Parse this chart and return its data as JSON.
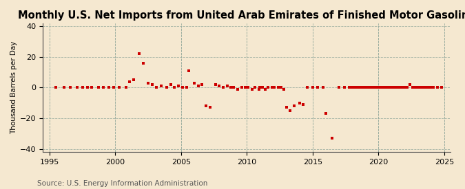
{
  "title": "Monthly U.S. Net Imports from United Arab Emirates of Finished Motor Gasoline",
  "ylabel": "Thousand Barrels per Day",
  "source": "Source: U.S. Energy Information Administration",
  "background_color": "#f5e8d0",
  "plot_bg_color": "#f5e8d0",
  "marker_color": "#cc0000",
  "marker": "s",
  "marker_size": 3.5,
  "xlim": [
    1994.5,
    2025.5
  ],
  "ylim": [
    -42,
    42
  ],
  "yticks": [
    -40,
    -20,
    0,
    20,
    40
  ],
  "xticks": [
    1995,
    2000,
    2005,
    2010,
    2015,
    2020,
    2025
  ],
  "title_fontsize": 10.5,
  "source_fontsize": 7.5,
  "data_points": [
    [
      1995.5,
      0
    ],
    [
      1996.1,
      0
    ],
    [
      1996.6,
      0
    ],
    [
      1997.1,
      0
    ],
    [
      1997.5,
      0
    ],
    [
      1997.9,
      0
    ],
    [
      1998.2,
      0
    ],
    [
      1998.7,
      0
    ],
    [
      1999.1,
      0
    ],
    [
      1999.5,
      0
    ],
    [
      1999.9,
      0
    ],
    [
      2000.3,
      0
    ],
    [
      2000.8,
      0
    ],
    [
      2001.1,
      4
    ],
    [
      2001.4,
      5
    ],
    [
      2001.8,
      22
    ],
    [
      2002.1,
      16
    ],
    [
      2002.5,
      3
    ],
    [
      2002.8,
      2
    ],
    [
      2003.1,
      0
    ],
    [
      2003.5,
      1
    ],
    [
      2003.9,
      0
    ],
    [
      2004.2,
      2
    ],
    [
      2004.5,
      0
    ],
    [
      2004.8,
      1
    ],
    [
      2005.1,
      0
    ],
    [
      2005.4,
      0
    ],
    [
      2005.6,
      11
    ],
    [
      2006.0,
      3
    ],
    [
      2006.3,
      1
    ],
    [
      2006.6,
      2
    ],
    [
      2006.9,
      -12
    ],
    [
      2007.2,
      -13
    ],
    [
      2007.6,
      2
    ],
    [
      2007.9,
      1
    ],
    [
      2008.2,
      0
    ],
    [
      2008.5,
      1
    ],
    [
      2008.8,
      0
    ],
    [
      2009.0,
      0
    ],
    [
      2009.3,
      -1
    ],
    [
      2009.6,
      0
    ],
    [
      2009.9,
      0
    ],
    [
      2010.1,
      0
    ],
    [
      2010.4,
      -1
    ],
    [
      2010.6,
      0
    ],
    [
      2010.9,
      -1
    ],
    [
      2011.0,
      0
    ],
    [
      2011.2,
      0
    ],
    [
      2011.4,
      -1
    ],
    [
      2011.6,
      0
    ],
    [
      2011.9,
      0
    ],
    [
      2012.1,
      0
    ],
    [
      2012.4,
      0
    ],
    [
      2012.6,
      0
    ],
    [
      2012.8,
      -1
    ],
    [
      2013.0,
      -13
    ],
    [
      2013.3,
      -15
    ],
    [
      2013.6,
      -12
    ],
    [
      2014.0,
      -10
    ],
    [
      2014.3,
      -11
    ],
    [
      2014.6,
      0
    ],
    [
      2015.0,
      0
    ],
    [
      2015.4,
      0
    ],
    [
      2015.8,
      0
    ],
    [
      2016.0,
      -17
    ],
    [
      2016.5,
      -33
    ],
    [
      2017.0,
      0
    ],
    [
      2017.4,
      0
    ],
    [
      2017.8,
      0
    ],
    [
      2018.0,
      0
    ],
    [
      2018.2,
      0
    ],
    [
      2018.4,
      0
    ],
    [
      2018.6,
      0
    ],
    [
      2018.8,
      0
    ],
    [
      2019.0,
      0
    ],
    [
      2019.2,
      0
    ],
    [
      2019.4,
      0
    ],
    [
      2019.6,
      0
    ],
    [
      2019.8,
      0
    ],
    [
      2020.0,
      0
    ],
    [
      2020.2,
      0
    ],
    [
      2020.4,
      0
    ],
    [
      2020.6,
      0
    ],
    [
      2020.8,
      0
    ],
    [
      2021.0,
      0
    ],
    [
      2021.2,
      0
    ],
    [
      2021.4,
      0
    ],
    [
      2021.6,
      0
    ],
    [
      2021.8,
      0
    ],
    [
      2022.0,
      0
    ],
    [
      2022.2,
      0
    ],
    [
      2022.4,
      2
    ],
    [
      2022.6,
      0
    ],
    [
      2022.8,
      0
    ],
    [
      2023.0,
      0
    ],
    [
      2023.2,
      0
    ],
    [
      2023.4,
      0
    ],
    [
      2023.6,
      0
    ],
    [
      2023.8,
      0
    ],
    [
      2024.0,
      0
    ],
    [
      2024.2,
      0
    ],
    [
      2024.5,
      0
    ],
    [
      2024.8,
      0
    ]
  ]
}
